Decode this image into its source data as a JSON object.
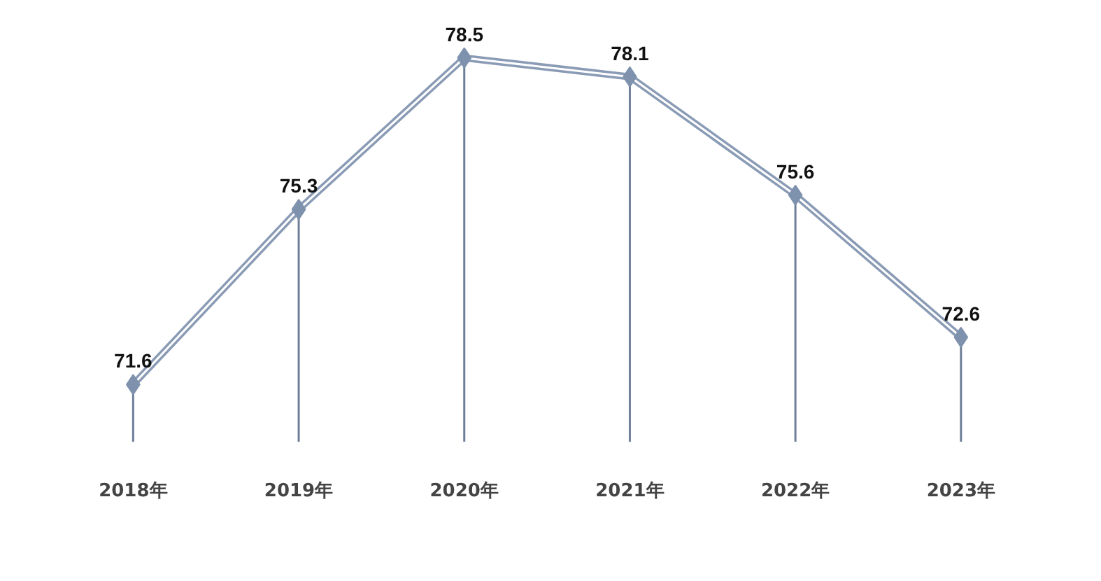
{
  "chart_data": {
    "type": "line",
    "categories": [
      "2018年",
      "2019年",
      "2020年",
      "2021年",
      "2022年",
      "2023年"
    ],
    "series": [
      {
        "color": "#8a9bb5",
        "values": [
          71.6,
          75.3,
          78.5,
          78.1,
          75.6,
          72.6
        ]
      }
    ],
    "tick_labels": "x",
    "data_labels": true,
    "marker": "diamond",
    "line_style": "solid",
    "grid": "x"
  }
}
